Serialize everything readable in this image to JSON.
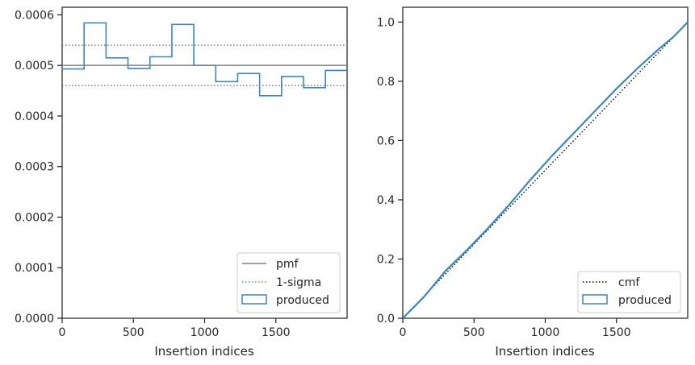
{
  "chart_data": [
    {
      "type": "histogram",
      "xlabel": "Insertion indices",
      "ylabel": "",
      "xlim": [
        0,
        2000
      ],
      "ylim": [
        0,
        0.000615
      ],
      "xticks": [
        0,
        500,
        1000,
        1500
      ],
      "xtick_labels": [
        "0",
        "500",
        "1000",
        "1500"
      ],
      "yticks": [
        0,
        0.0001,
        0.0002,
        0.0003,
        0.0004,
        0.0005,
        0.0006
      ],
      "ytick_labels": [
        "0.0000",
        "0.0001",
        "0.0002",
        "0.0003",
        "0.0004",
        "0.0005",
        "0.0006"
      ],
      "grid": false,
      "legend_position": "lower-right",
      "bin_edges": [
        0,
        154,
        308,
        462,
        616,
        770,
        924,
        1078,
        1232,
        1386,
        1540,
        1694,
        1848,
        2000
      ],
      "series": [
        {
          "name": "produced",
          "kind": "step-histogram",
          "color": "#3a87bf",
          "values": [
            0.000493,
            0.000584,
            0.000515,
            0.000494,
            0.000517,
            0.000581,
            0.0005,
            0.000468,
            0.000484,
            0.00044,
            0.000478,
            0.000456,
            0.00049
          ]
        },
        {
          "name": "pmf",
          "kind": "hline",
          "color": "#808080",
          "y": 0.0005
        },
        {
          "name": "1-sigma",
          "kind": "hline-dotted",
          "color": "#808080",
          "y": [
            0.00054,
            0.00046
          ]
        }
      ],
      "legend": [
        "pmf",
        "1-sigma",
        "produced"
      ]
    },
    {
      "type": "line",
      "xlabel": "Insertion indices",
      "ylabel": "",
      "xlim": [
        0,
        2000
      ],
      "ylim": [
        0,
        1.05
      ],
      "xticks": [
        0,
        500,
        1000,
        1500
      ],
      "xtick_labels": [
        "0",
        "500",
        "1000",
        "1500"
      ],
      "yticks": [
        0,
        0.2,
        0.4,
        0.6,
        0.8,
        1.0
      ],
      "ytick_labels": [
        "0.0",
        "0.2",
        "0.4",
        "0.6",
        "0.8",
        "1.0"
      ],
      "grid": false,
      "legend_position": "lower-right",
      "series": [
        {
          "name": "cmf",
          "kind": "dotted-line",
          "color": "#000000",
          "x": [
            0,
            2000
          ],
          "y": [
            0,
            1.0
          ]
        },
        {
          "name": "produced",
          "kind": "step-line",
          "color": "#3a87bf",
          "x": [
            0,
            150,
            300,
            450,
            600,
            750,
            900,
            1050,
            1200,
            1350,
            1500,
            1650,
            1800,
            1900,
            2000
          ],
          "y": [
            0,
            0.073,
            0.16,
            0.23,
            0.305,
            0.385,
            0.47,
            0.55,
            0.625,
            0.7,
            0.775,
            0.845,
            0.91,
            0.95,
            1.0
          ]
        }
      ],
      "legend": [
        "cmf",
        "produced"
      ]
    }
  ]
}
